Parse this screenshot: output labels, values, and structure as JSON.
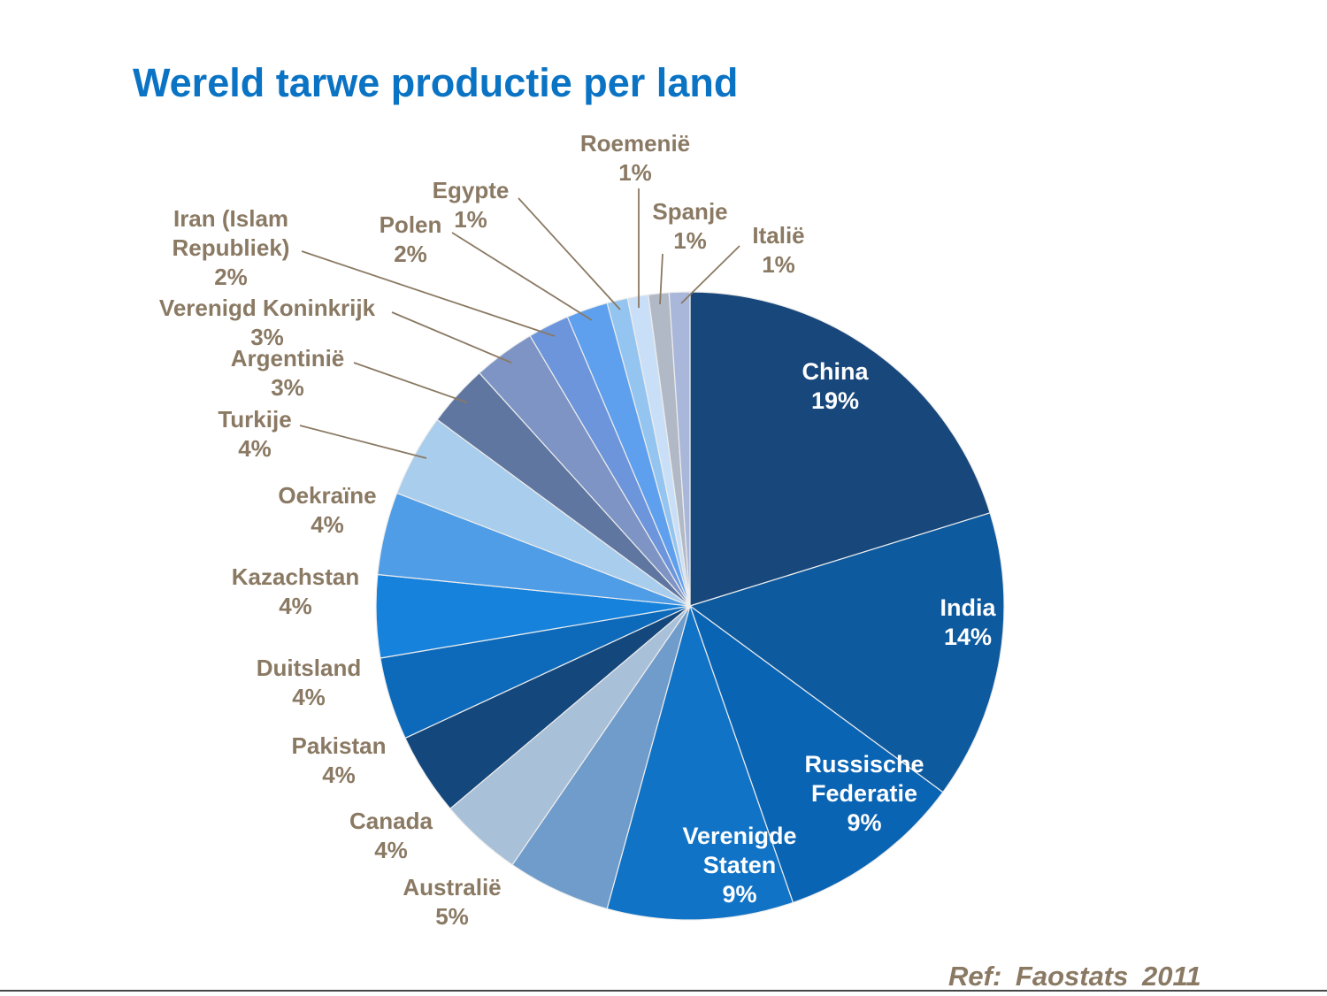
{
  "title": "Wereld tarwe productie per land",
  "source_ref": "Ref: Faostats 2011",
  "colors": {
    "title_text": "#0A73C4",
    "label_text": "#8A7963",
    "leader_line": "#8A7963",
    "inside_label_text": "#FFFFFF",
    "background": "#FFFFFF",
    "bottom_rule": "#474747",
    "slice_border": "#EDEDED"
  },
  "chart_data": {
    "type": "pie",
    "title": "Wereld tarwe productie per land",
    "source": "Ref: Faostats 2011",
    "direction": "clockwise",
    "start_angle_deg": 0,
    "unit": "percent",
    "series": [
      {
        "name": "China",
        "value": 19,
        "pct_label": "19%",
        "color": "#17477B",
        "display_lines": [
          "China",
          "19%"
        ]
      },
      {
        "name": "India",
        "value": 14,
        "pct_label": "14%",
        "color": "#0D5A9F",
        "display_lines": [
          "India",
          "14%"
        ]
      },
      {
        "name": "Russische Federatie",
        "value": 9,
        "pct_label": "9%",
        "color": "#0A64B4",
        "display_lines": [
          "Russische",
          "Federatie",
          "9%"
        ]
      },
      {
        "name": "Verenigde Staten",
        "value": 9,
        "pct_label": "9%",
        "color": "#1173C6",
        "display_lines": [
          "Verenigde",
          "Staten",
          "9%"
        ]
      },
      {
        "name": "Australië",
        "value": 5,
        "pct_label": "5%",
        "color": "#6F9CCB",
        "display_lines": [
          "Australië",
          "5%"
        ]
      },
      {
        "name": "Canada",
        "value": 4,
        "pct_label": "4%",
        "color": "#A9C0D9",
        "display_lines": [
          "Canada",
          "4%"
        ]
      },
      {
        "name": "Pakistan",
        "value": 4,
        "pct_label": "4%",
        "color": "#14477B",
        "display_lines": [
          "Pakistan",
          "4%"
        ]
      },
      {
        "name": "Duitsland",
        "value": 4,
        "pct_label": "4%",
        "color": "#0D6ABA",
        "display_lines": [
          "Duitsland",
          "4%"
        ]
      },
      {
        "name": "Kazachstan",
        "value": 4,
        "pct_label": "4%",
        "color": "#1682DC",
        "display_lines": [
          "Kazachstan",
          "4%"
        ]
      },
      {
        "name": "Oekraïne",
        "value": 4,
        "pct_label": "4%",
        "color": "#4F9DE6",
        "display_lines": [
          "Oekraïne",
          "4%"
        ]
      },
      {
        "name": "Turkije",
        "value": 4,
        "pct_label": "4%",
        "color": "#A9CDEC",
        "display_lines": [
          "Turkije",
          "4%"
        ]
      },
      {
        "name": "Argentinië",
        "value": 3,
        "pct_label": "3%",
        "color": "#5F76A1",
        "display_lines": [
          "Argentinië",
          "3%"
        ]
      },
      {
        "name": "Verenigd Koninkrijk",
        "value": 3,
        "pct_label": "3%",
        "color": "#7E94C4",
        "display_lines": [
          "Verenigd Koninkrijk",
          "3%"
        ]
      },
      {
        "name": "Iran (Islam Republiek)",
        "value": 2,
        "pct_label": "2%",
        "color": "#6C95DC",
        "display_lines": [
          "Iran (Islam",
          "Republiek)",
          "2%"
        ]
      },
      {
        "name": "Polen",
        "value": 2,
        "pct_label": "2%",
        "color": "#5FA0EE",
        "display_lines": [
          "Polen",
          "2%"
        ]
      },
      {
        "name": "Egypte",
        "value": 1,
        "pct_label": "1%",
        "color": "#94C4F0",
        "display_lines": [
          "Egypte",
          "1%"
        ]
      },
      {
        "name": "Roemenië",
        "value": 1,
        "pct_label": "1%",
        "color": "#C9DFF7",
        "display_lines": [
          "Roemenië",
          "1%"
        ]
      },
      {
        "name": "Spanje",
        "value": 1,
        "pct_label": "1%",
        "color": "#B2B9C6",
        "display_lines": [
          "Spanje",
          "1%"
        ]
      },
      {
        "name": "Italië",
        "value": 1,
        "pct_label": "1%",
        "color": "#A9B7DA",
        "display_lines": [
          "Italië",
          "1%"
        ]
      }
    ]
  }
}
